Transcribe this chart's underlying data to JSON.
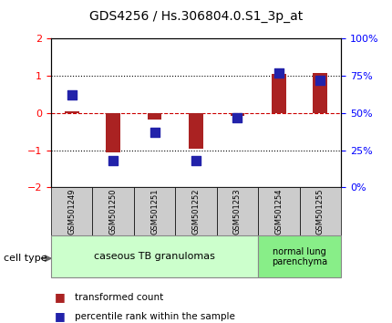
{
  "title": "GDS4256 / Hs.306804.0.S1_3p_at",
  "samples": [
    "GSM501249",
    "GSM501250",
    "GSM501251",
    "GSM501252",
    "GSM501253",
    "GSM501254",
    "GSM501255"
  ],
  "transformed_count": [
    0.05,
    -1.05,
    -0.18,
    -0.95,
    -0.07,
    1.05,
    1.08
  ],
  "percentile_rank": [
    0.62,
    -1.28,
    -0.62,
    -1.28,
    -0.12,
    1.0,
    0.85
  ],
  "percentile_rank_pct": [
    62,
    18,
    37,
    18,
    47,
    77,
    72
  ],
  "ylim_left": [
    -2,
    2
  ],
  "ylim_right": [
    0,
    100
  ],
  "yticks_left": [
    -2,
    -1,
    0,
    1,
    2
  ],
  "yticks_right": [
    0,
    25,
    50,
    75,
    100
  ],
  "ytick_labels_right": [
    "0%",
    "25%",
    "50%",
    "75%",
    "100%"
  ],
  "bar_color": "#aa2222",
  "dot_color": "#2222aa",
  "groups": [
    {
      "label": "caseous TB granulomas",
      "samples": [
        0,
        1,
        2,
        3,
        4
      ],
      "color": "#aaffaa"
    },
    {
      "label": "normal lung\nparenchyma",
      "samples": [
        5,
        6
      ],
      "color": "#66dd66"
    }
  ],
  "cell_type_label": "cell type",
  "legend_items": [
    {
      "color": "#aa2222",
      "label": "transformed count"
    },
    {
      "color": "#2222aa",
      "label": "percentile rank within the sample"
    }
  ],
  "hline_color_zero": "#cc0000",
  "hline_color_1": "#000000",
  "bar_width": 0.35,
  "dot_size": 60,
  "background_color": "#ffffff"
}
